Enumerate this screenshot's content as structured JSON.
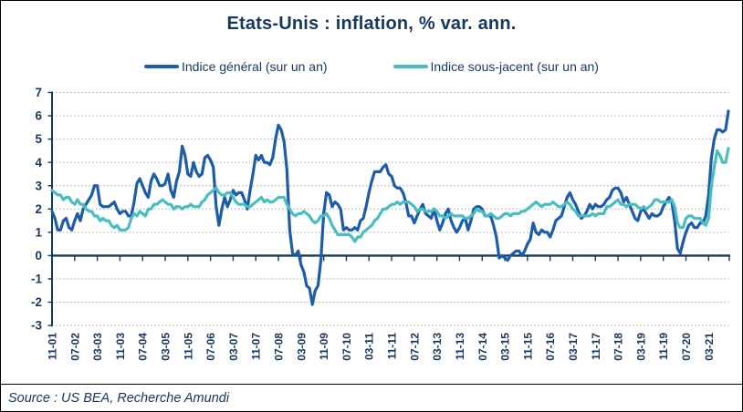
{
  "title": "Etats-Unis : inflation, % var. ann.",
  "legend": [
    {
      "label": "Indice général (sur un an)",
      "color": "#1D5CA9"
    },
    {
      "label": "Indice sous-jacent (sur un an)",
      "color": "#4ABDBE"
    }
  ],
  "source": "Source : US BEA, Recherche Amundi",
  "colors": {
    "text_navy": "#17375E",
    "axis_navy": "#17375E",
    "gridline_gray": "#A6A6A6",
    "headline_blue": "#1D5CA9",
    "core_teal": "#4ABDBE",
    "frame_black": "#000000"
  },
  "chart_data": {
    "type": "line",
    "title": "Etats-Unis : inflation, % var. ann.",
    "x_unit": "monthly, Nov 2001 - Oct 2021",
    "x_tick_labels": [
      "11-01",
      "07-02",
      "03-03",
      "11-03",
      "07-04",
      "03-05",
      "11-05",
      "07-06",
      "03-07",
      "11-07",
      "07-08",
      "03-09",
      "11-09",
      "07-10",
      "03-11",
      "11-11",
      "07-12",
      "03-13",
      "11-13",
      "07-14",
      "03-15",
      "11-15",
      "07-16",
      "03-17",
      "11-17",
      "07-18",
      "03-19",
      "11-19",
      "07-20",
      "03-21"
    ],
    "x_tick_interval_months": 8,
    "y_ticks": [
      -3,
      -2,
      -1,
      0,
      1,
      2,
      3,
      4,
      5,
      6,
      7
    ],
    "ylim": [
      -3,
      7
    ],
    "grid": "horizontal dotted, zero axis solid",
    "legend_position": "top center",
    "series": [
      {
        "name": "Indice général (sur un an)",
        "color": "#1D5CA9",
        "values": [
          1.9,
          1.6,
          1.1,
          1.1,
          1.5,
          1.6,
          1.2,
          1.1,
          1.5,
          1.8,
          1.5,
          2.0,
          2.2,
          2.4,
          2.6,
          3.0,
          3.0,
          2.2,
          2.1,
          2.1,
          2.1,
          2.2,
          2.3,
          2.0,
          1.8,
          1.9,
          1.9,
          1.7,
          1.7,
          2.3,
          3.1,
          3.3,
          3.0,
          2.7,
          2.5,
          3.2,
          3.5,
          3.3,
          3.0,
          3.0,
          3.1,
          3.5,
          2.8,
          2.5,
          3.2,
          3.6,
          4.7,
          4.3,
          3.5,
          3.4,
          4.0,
          3.6,
          3.4,
          3.5,
          4.2,
          4.3,
          4.1,
          3.8,
          2.1,
          1.3,
          2.0,
          2.5,
          2.1,
          2.4,
          2.8,
          2.6,
          2.7,
          2.7,
          2.4,
          2.0,
          2.8,
          3.5,
          4.3,
          4.1,
          4.3,
          4.0,
          4.0,
          3.9,
          4.2,
          5.0,
          5.6,
          5.4,
          4.9,
          3.7,
          1.1,
          0.1,
          0.0,
          0.2,
          -0.4,
          -0.7,
          -1.3,
          -1.4,
          -2.1,
          -1.5,
          -1.3,
          -0.2,
          1.8,
          2.7,
          2.6,
          2.1,
          2.3,
          2.2,
          2.0,
          1.1,
          1.2,
          1.1,
          1.1,
          1.2,
          1.1,
          1.5,
          1.6,
          2.1,
          2.7,
          3.2,
          3.6,
          3.6,
          3.6,
          3.8,
          3.9,
          3.5,
          3.4,
          3.0,
          2.9,
          2.9,
          2.7,
          2.3,
          1.7,
          1.7,
          1.4,
          1.7,
          2.0,
          2.2,
          1.8,
          1.7,
          1.6,
          2.0,
          1.5,
          1.1,
          1.4,
          1.8,
          2.0,
          1.5,
          1.2,
          1.0,
          1.2,
          1.5,
          1.6,
          1.1,
          1.5,
          2.0,
          2.1,
          2.1,
          2.0,
          1.7,
          1.7,
          1.7,
          1.3,
          0.8,
          -0.1,
          0.0,
          -0.1,
          -0.2,
          0.0,
          0.1,
          0.2,
          0.2,
          0.0,
          0.2,
          0.5,
          0.7,
          1.4,
          1.0,
          0.9,
          1.1,
          1.0,
          1.0,
          0.8,
          1.1,
          1.5,
          1.6,
          1.7,
          2.1,
          2.5,
          2.7,
          2.4,
          2.2,
          1.9,
          1.6,
          1.7,
          1.9,
          2.2,
          2.0,
          2.2,
          2.1,
          2.1,
          2.2,
          2.4,
          2.5,
          2.8,
          2.9,
          2.9,
          2.7,
          2.3,
          2.5,
          2.2,
          1.9,
          1.6,
          1.5,
          1.9,
          2.0,
          1.8,
          1.6,
          1.8,
          1.7,
          1.7,
          1.8,
          2.1,
          2.3,
          2.5,
          2.3,
          1.5,
          0.3,
          0.1,
          0.6,
          1.0,
          1.3,
          1.4,
          1.2,
          1.2,
          1.4,
          1.4,
          1.7,
          2.6,
          4.2,
          5.0,
          5.4,
          5.4,
          5.3,
          5.4,
          6.2
        ]
      },
      {
        "name": "Indice sous-jacent (sur un an)",
        "color": "#4ABDBE",
        "values": [
          2.8,
          2.7,
          2.6,
          2.6,
          2.4,
          2.5,
          2.5,
          2.3,
          2.2,
          2.4,
          2.2,
          2.2,
          2.0,
          1.9,
          1.9,
          1.7,
          1.7,
          1.5,
          1.6,
          1.5,
          1.5,
          1.3,
          1.2,
          1.3,
          1.1,
          1.1,
          1.1,
          1.2,
          1.6,
          1.8,
          1.7,
          1.9,
          1.8,
          1.7,
          2.0,
          2.0,
          2.2,
          2.2,
          2.3,
          2.4,
          2.3,
          2.2,
          2.2,
          2.0,
          2.1,
          2.1,
          2.0,
          2.1,
          2.1,
          2.2,
          2.1,
          2.1,
          2.1,
          2.3,
          2.4,
          2.6,
          2.7,
          2.8,
          2.9,
          2.7,
          2.6,
          2.6,
          2.7,
          2.7,
          2.5,
          2.3,
          2.2,
          2.2,
          2.2,
          2.1,
          2.1,
          2.2,
          2.3,
          2.4,
          2.5,
          2.3,
          2.4,
          2.3,
          2.3,
          2.4,
          2.5,
          2.5,
          2.5,
          2.2,
          2.0,
          1.8,
          1.7,
          1.8,
          1.8,
          1.9,
          1.8,
          1.7,
          1.5,
          1.4,
          1.5,
          1.7,
          1.7,
          1.8,
          1.6,
          1.3,
          1.1,
          0.9,
          0.9,
          0.9,
          0.9,
          0.9,
          0.8,
          0.6,
          0.8,
          0.8,
          1.0,
          1.1,
          1.2,
          1.3,
          1.5,
          1.6,
          1.8,
          2.0,
          2.0,
          2.1,
          2.2,
          2.2,
          2.3,
          2.2,
          2.3,
          2.3,
          2.3,
          2.2,
          2.1,
          1.9,
          2.0,
          2.0,
          1.9,
          1.9,
          1.9,
          2.0,
          1.9,
          1.7,
          1.7,
          1.6,
          1.7,
          1.8,
          1.7,
          1.7,
          1.7,
          1.7,
          1.6,
          1.6,
          1.7,
          1.8,
          2.0,
          1.9,
          1.9,
          1.7,
          1.7,
          1.8,
          1.7,
          1.6,
          1.6,
          1.7,
          1.8,
          1.8,
          1.7,
          1.8,
          1.8,
          1.8,
          1.9,
          1.9,
          2.0,
          2.1,
          2.2,
          2.3,
          2.2,
          2.1,
          2.2,
          2.2,
          2.2,
          2.3,
          2.2,
          2.1,
          2.1,
          2.2,
          2.3,
          2.2,
          2.0,
          1.9,
          1.7,
          1.7,
          1.7,
          1.7,
          1.7,
          1.8,
          1.7,
          1.8,
          1.8,
          1.8,
          2.1,
          2.1,
          2.2,
          2.3,
          2.4,
          2.2,
          2.2,
          2.1,
          2.2,
          2.2,
          2.2,
          2.1,
          2.0,
          2.1,
          2.0,
          2.1,
          2.2,
          2.4,
          2.4,
          2.3,
          2.3,
          2.3,
          2.3,
          2.4,
          2.1,
          1.4,
          1.2,
          1.2,
          1.6,
          1.7,
          1.7,
          1.6,
          1.6,
          1.6,
          1.4,
          1.3,
          1.6,
          3.0,
          3.8,
          4.5,
          4.3,
          4.0,
          4.0,
          4.6
        ]
      }
    ]
  }
}
